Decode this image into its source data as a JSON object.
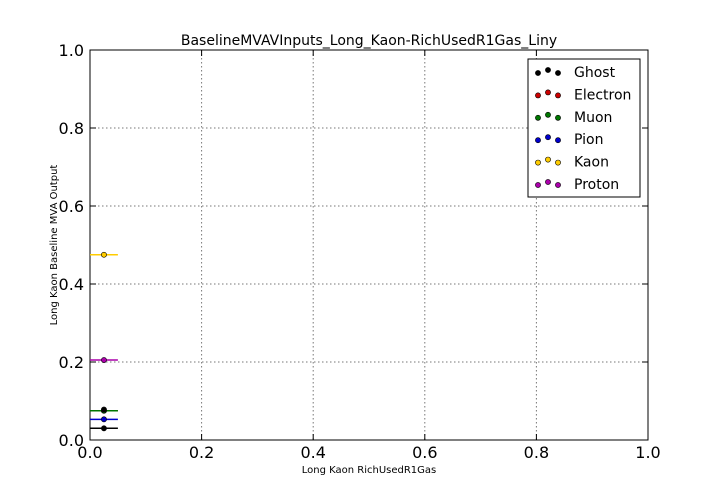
{
  "chart_data": {
    "type": "scatter",
    "title": "BaselineMVAVInputs_Long_Kaon-RichUsedR1Gas_Liny",
    "xlabel": "Long Kaon RichUsedR1Gas",
    "ylabel": "Long Kaon Baseline MVA Output",
    "xlim": [
      0.0,
      1.0
    ],
    "ylim": [
      0.0,
      1.0
    ],
    "xticks": [
      "0.0",
      "0.2",
      "0.4",
      "0.6",
      "0.8",
      "1.0"
    ],
    "yticks": [
      "0.0",
      "0.2",
      "0.4",
      "0.6",
      "0.8",
      "1.0"
    ],
    "grid": true,
    "legend_position": "top-right",
    "series": [
      {
        "name": "Ghost",
        "color": "#000000",
        "x": [
          0.025
        ],
        "y": [
          0.03
        ],
        "xerr": [
          0.025
        ]
      },
      {
        "name": "Electron",
        "color": "#cc0000",
        "x": [
          0.025
        ],
        "y": [
          0.075
        ],
        "xerr": [
          0.025
        ]
      },
      {
        "name": "Muon",
        "color": "#007700",
        "x": [
          0.025
        ],
        "y": [
          0.075
        ],
        "xerr": [
          0.025
        ]
      },
      {
        "name": "Pion",
        "color": "#0000cc",
        "x": [
          0.025
        ],
        "y": [
          0.053
        ],
        "xerr": [
          0.025
        ]
      },
      {
        "name": "Kaon",
        "color": "#ffcc00",
        "x": [
          0.025
        ],
        "y": [
          0.475
        ],
        "xerr": [
          0.025
        ]
      },
      {
        "name": "Proton",
        "color": "#aa00aa",
        "x": [
          0.025
        ],
        "y": [
          0.205
        ],
        "xerr": [
          0.025
        ]
      }
    ],
    "extra_marks": [
      {
        "series": "Ghost",
        "x": 0.025,
        "y": 0.078
      }
    ]
  }
}
